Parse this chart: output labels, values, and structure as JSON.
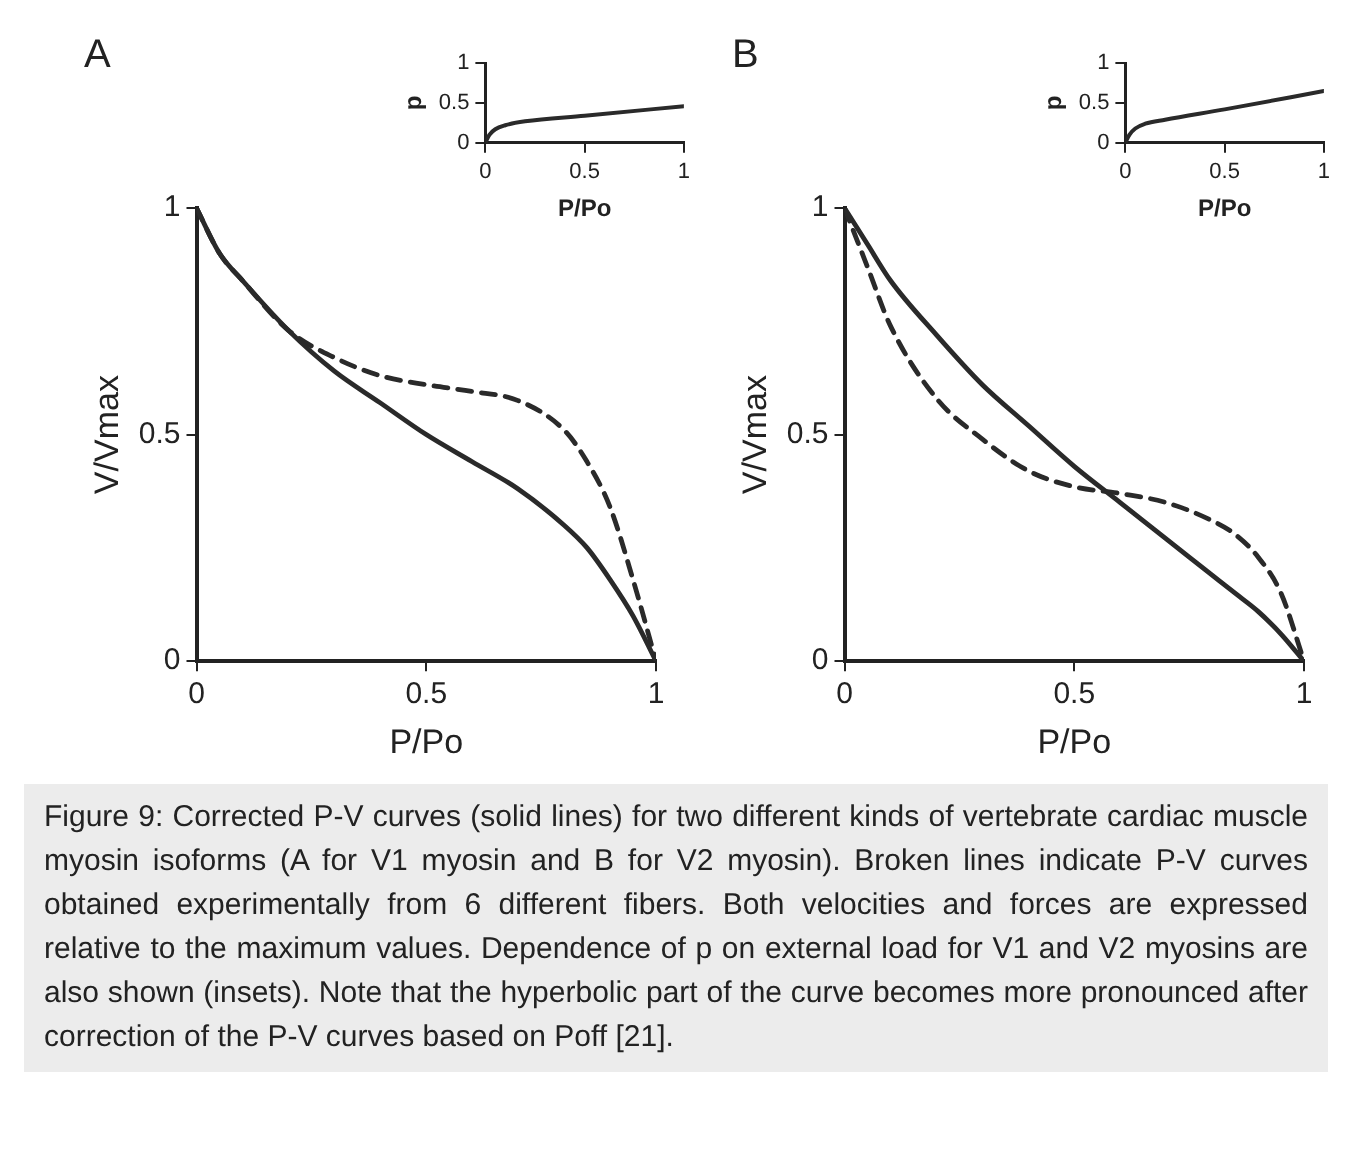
{
  "chart_data": [
    {
      "type": "line",
      "title": "A",
      "xlabel": "P/Po",
      "ylabel": "V/Vmax",
      "xlim": [
        0,
        1
      ],
      "ylim": [
        0,
        1
      ],
      "xticks": [
        0,
        0.5,
        1
      ],
      "yticks": [
        0,
        0.5,
        1
      ],
      "marker": "none",
      "x": [
        0,
        0.05,
        0.1,
        0.2,
        0.3,
        0.4,
        0.5,
        0.6,
        0.7,
        0.8,
        0.85,
        0.9,
        0.95,
        1
      ],
      "series": [
        {
          "color": "#2a2a2a",
          "line_style": "solid",
          "values": [
            1,
            0.9,
            0.84,
            0.73,
            0.64,
            0.57,
            0.5,
            0.44,
            0.38,
            0.3,
            0.25,
            0.18,
            0.1,
            0
          ]
        },
        {
          "color": "#2a2a2a",
          "line_style": "dashed",
          "values": [
            1,
            0.9,
            0.84,
            0.73,
            0.67,
            0.63,
            0.61,
            0.595,
            0.575,
            0.51,
            0.44,
            0.34,
            0.18,
            0
          ]
        }
      ],
      "annotations": [
        "Figure 9: Corrected P-V curves (solid lines) for two different kinds of vertebrate cardiac muscle myosin isoforms (A for V1 myosin and B for V2 myosin). Broken lines indicate P-V curves obtained experimentally from 6 different fibers. Both velocities and forces are expressed relative to the maximum values. Dependence of p on external load for V1 and V2 myosins are also shown (insets). Note that the hyperbolic part of the curve becomes more pronounced after correction of the P-V curves based on Poff [21]."
      ]
    },
    {
      "type": "line",
      "xlabel": "P/Po",
      "ylabel": "p",
      "xlim": [
        0,
        1
      ],
      "ylim": [
        0,
        1
      ],
      "xticks": [
        0,
        0.5,
        1
      ],
      "yticks": [
        0,
        0.5,
        1
      ],
      "marker": "none",
      "x": [
        0,
        0.02,
        0.05,
        0.1,
        0.2,
        0.5,
        1
      ],
      "series": [
        {
          "color": "#2a2a2a",
          "line_style": "solid",
          "values": [
            0,
            0.1,
            0.17,
            0.22,
            0.27,
            0.34,
            0.46
          ]
        }
      ]
    },
    {
      "type": "line",
      "title": "B",
      "xlabel": "P/Po",
      "ylabel": "V/Vmax",
      "xlim": [
        0,
        1
      ],
      "ylim": [
        0,
        1
      ],
      "xticks": [
        0,
        0.5,
        1
      ],
      "yticks": [
        0,
        0.5,
        1
      ],
      "marker": "none",
      "x": [
        0,
        0.05,
        0.1,
        0.2,
        0.3,
        0.4,
        0.5,
        0.6,
        0.7,
        0.8,
        0.85,
        0.9,
        0.95,
        1
      ],
      "series": [
        {
          "color": "#2a2a2a",
          "line_style": "solid",
          "values": [
            1,
            0.92,
            0.84,
            0.72,
            0.61,
            0.52,
            0.43,
            0.35,
            0.27,
            0.19,
            0.15,
            0.11,
            0.06,
            0
          ]
        },
        {
          "color": "#2a2a2a",
          "line_style": "dashed",
          "values": [
            1,
            0.87,
            0.74,
            0.58,
            0.49,
            0.42,
            0.385,
            0.37,
            0.35,
            0.31,
            0.28,
            0.23,
            0.15,
            0
          ]
        }
      ]
    },
    {
      "type": "line",
      "xlabel": "P/Po",
      "ylabel": "p",
      "xlim": [
        0,
        1
      ],
      "ylim": [
        0,
        1
      ],
      "xticks": [
        0,
        0.5,
        1
      ],
      "yticks": [
        0,
        0.5,
        1
      ],
      "marker": "none",
      "x": [
        0,
        0.02,
        0.05,
        0.1,
        0.2,
        0.5,
        1
      ],
      "series": [
        {
          "color": "#2a2a2a",
          "line_style": "solid",
          "values": [
            0,
            0.1,
            0.18,
            0.24,
            0.29,
            0.42,
            0.65
          ]
        }
      ]
    }
  ]
}
